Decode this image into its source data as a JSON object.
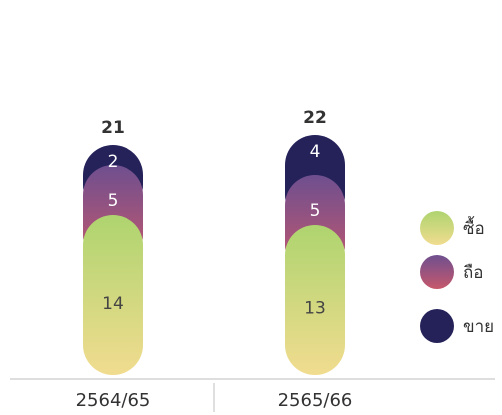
{
  "chart_data": {
    "type": "bar",
    "stacked": true,
    "categories": [
      "2564/65",
      "2565/66"
    ],
    "totals": [
      21,
      22
    ],
    "series": [
      {
        "name": "ซื้อ",
        "values": [
          14,
          13
        ],
        "gradient": [
          "#f1dc8f",
          "#aed46f"
        ]
      },
      {
        "name": "ถือ",
        "values": [
          5,
          5
        ],
        "gradient": [
          "#c7586c",
          "#6e4f8f"
        ]
      },
      {
        "name": "ขาย",
        "values": [
          2,
          4
        ],
        "gradient": [
          "#25225a",
          "#25225a"
        ]
      }
    ],
    "legend_position": "right",
    "grid": false
  }
}
